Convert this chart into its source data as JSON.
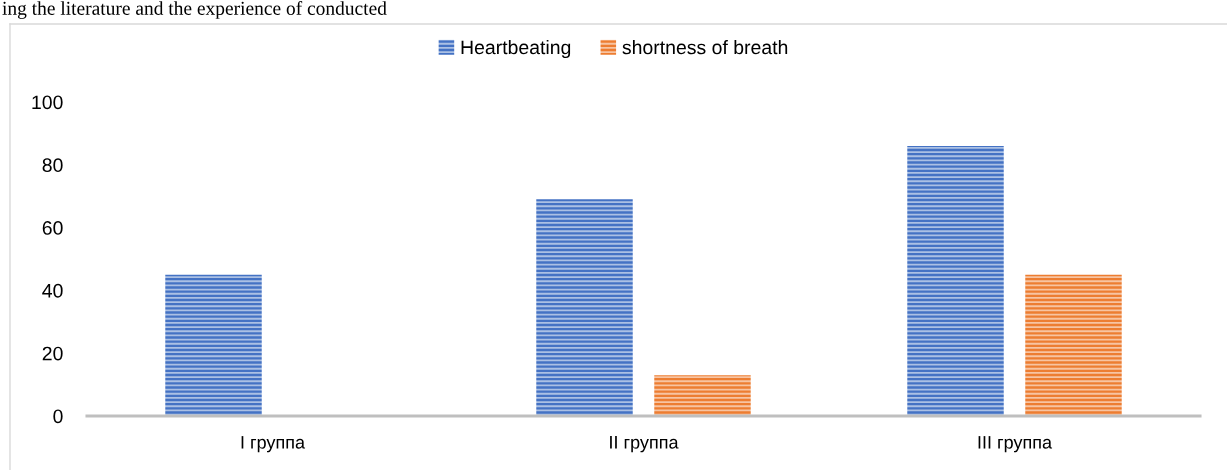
{
  "chart_data": {
    "type": "bar",
    "annotations": [
      "ing the literature and the experience of conducted"
    ],
    "categories": [
      "I группа",
      "II группа",
      "III группа"
    ],
    "series": [
      {
        "name": "Heartbeating",
        "color": "#4472c4",
        "values": [
          45,
          69,
          86
        ]
      },
      {
        "name": "shortness of breath",
        "color": "#ed7d31",
        "values": [
          null,
          13,
          45
        ]
      }
    ],
    "ylim": [
      0,
      100
    ],
    "yticks": [
      0,
      20,
      40,
      60,
      80,
      100
    ],
    "legend": "top"
  }
}
